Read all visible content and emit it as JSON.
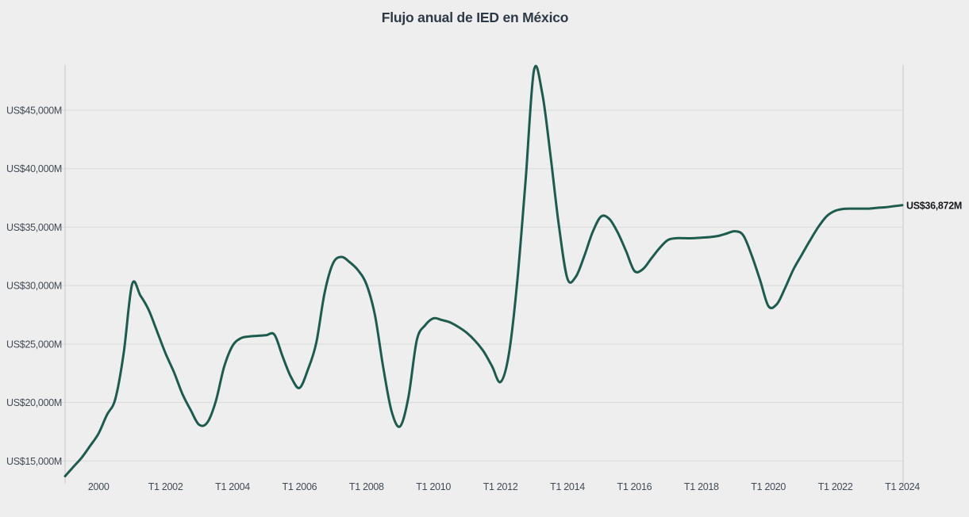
{
  "chart": {
    "title": "Flujo anual de IED en México"
  },
  "chart_data": {
    "type": "line",
    "title": "Flujo anual de IED en México",
    "unit": "US$M (millones de dólares)",
    "frequency": "quarterly",
    "x_start": "T1 1999",
    "x_end": "T1 2024",
    "values": [
      13700,
      14500,
      15300,
      16300,
      17350,
      18950,
      20300,
      24200,
      30100,
      29150,
      27900,
      26050,
      24200,
      22600,
      20750,
      19350,
      18100,
      18300,
      20100,
      23050,
      24850,
      25500,
      25650,
      25700,
      25750,
      25800,
      23900,
      22150,
      21250,
      22800,
      25100,
      29400,
      31900,
      32450,
      32000,
      31300,
      30100,
      27500,
      23000,
      19250,
      17950,
      20400,
      25300,
      26600,
      27200,
      27050,
      26850,
      26450,
      25950,
      25250,
      24350,
      23100,
      21750,
      24100,
      30300,
      39000,
      48400,
      46400,
      41000,
      35000,
      30600,
      30750,
      32500,
      34550,
      35900,
      35700,
      34550,
      32950,
      31250,
      31400,
      32300,
      33200,
      33900,
      34050,
      34050,
      34050,
      34100,
      34150,
      34250,
      34450,
      34650,
      34300,
      32600,
      30500,
      28250,
      28400,
      29800,
      31400,
      32650,
      33900,
      35050,
      35950,
      36400,
      36560,
      36580,
      36580,
      36580,
      36650,
      36700,
      36790,
      36872
    ],
    "last_value": 36872,
    "end_label": "US$36,872M",
    "y_ticks": [
      {
        "value": 15000,
        "label": "US$15,000M"
      },
      {
        "value": 20000,
        "label": "US$20,000M"
      },
      {
        "value": 25000,
        "label": "US$25,000M"
      },
      {
        "value": 30000,
        "label": "US$30,000M"
      },
      {
        "value": 35000,
        "label": "US$35,000M"
      },
      {
        "value": 40000,
        "label": "US$40,000M"
      },
      {
        "value": 45000,
        "label": "US$45,000M"
      }
    ],
    "x_ticks": [
      {
        "label": "2000",
        "t": 2000
      },
      {
        "label": "T1 2002",
        "t": 2002
      },
      {
        "label": "T1 2004",
        "t": 2004
      },
      {
        "label": "T1 2006",
        "t": 2006
      },
      {
        "label": "T1 2008",
        "t": 2008
      },
      {
        "label": "T1 2010",
        "t": 2010
      },
      {
        "label": "T1 2012",
        "t": 2012
      },
      {
        "label": "T1 2014",
        "t": 2014
      },
      {
        "label": "T1 2016",
        "t": 2016
      },
      {
        "label": "T1 2018",
        "t": 2018
      },
      {
        "label": "T1 2020",
        "t": 2020
      },
      {
        "label": "T1 2022",
        "t": 2022
      },
      {
        "label": "T1 2024",
        "t": 2024
      }
    ],
    "xlim_t": [
      1999,
      2024
    ],
    "grid": "horizontal",
    "legend": "none"
  },
  "colors": {
    "background": "#eeeeee",
    "line": "#1e5b4e",
    "grid": "#d9dadb",
    "axis": "#c5c7c9",
    "title": "#2e3947",
    "tick_text": "#424a55",
    "end_label_text": "#17191c"
  }
}
